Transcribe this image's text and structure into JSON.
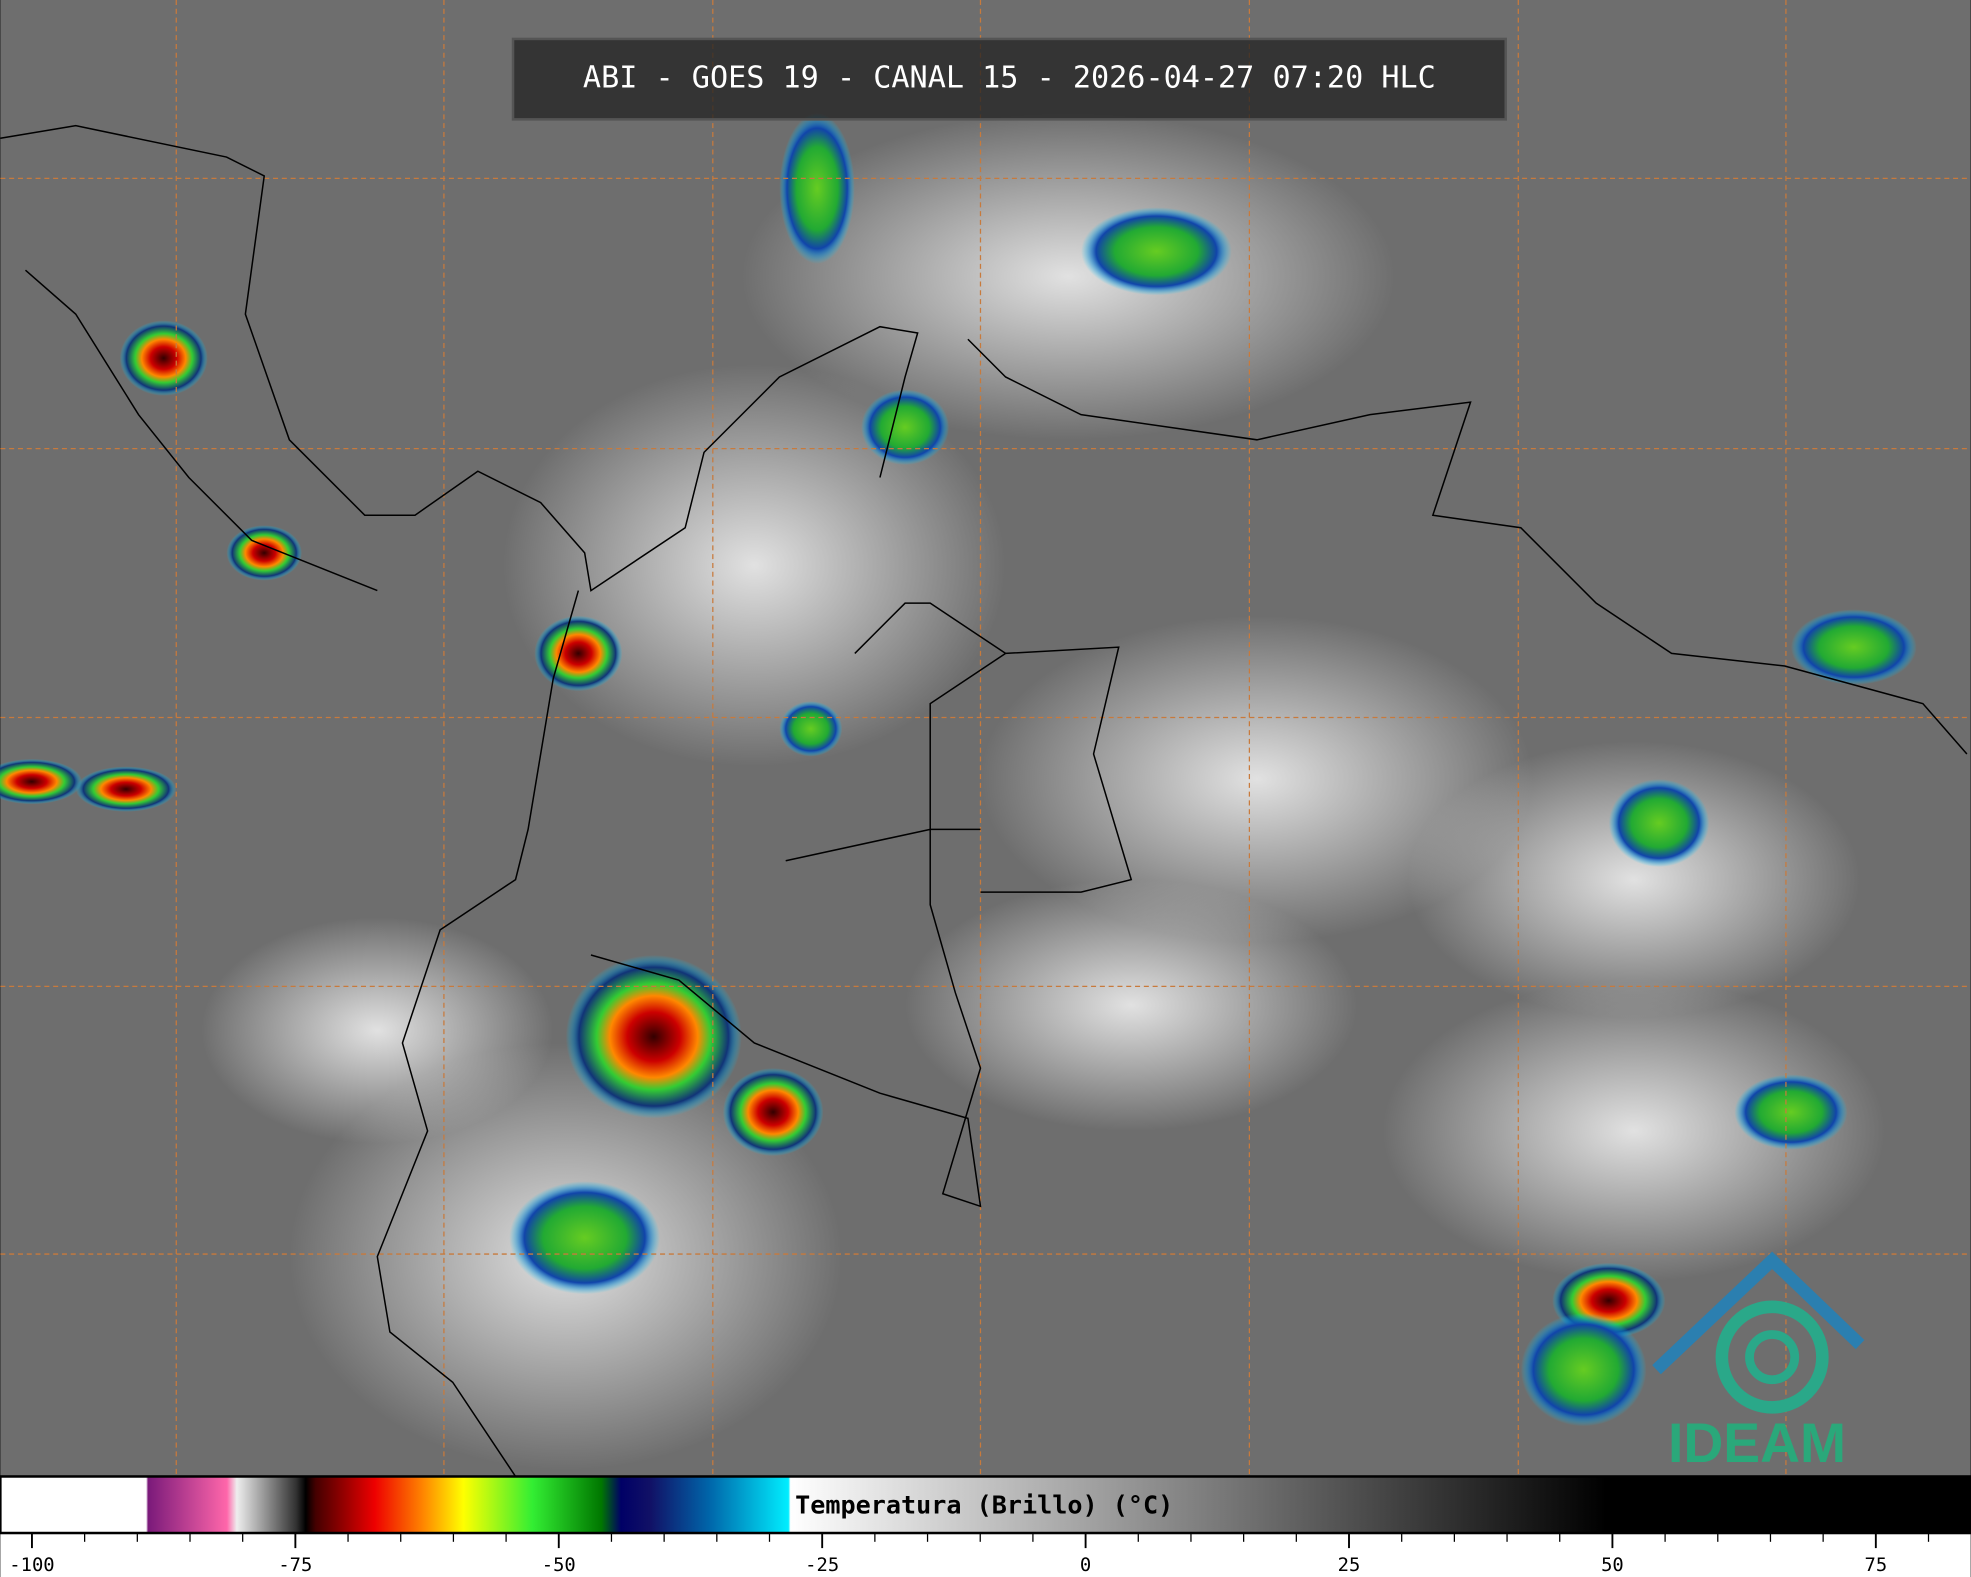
{
  "header": {
    "title": "ABI - GOES 19 - CANAL 15 - 2026-04-27 07:20 HLC"
  },
  "colorbar": {
    "label": "Temperatura (Brillo) (°C)",
    "range": [
      -103,
      84
    ],
    "ticks": [
      -100,
      -75,
      -50,
      -25,
      0,
      25,
      50,
      75
    ],
    "minor_ticks": [
      -95,
      -90,
      -85,
      -80,
      -70,
      -65,
      -60,
      -55,
      -45,
      -40,
      -35,
      -30,
      -20,
      -15,
      -10,
      -5,
      5,
      10,
      15,
      20,
      30,
      35,
      40,
      45,
      55,
      60,
      65,
      70,
      80
    ]
  },
  "logo": {
    "text": "IDEAM"
  }
}
